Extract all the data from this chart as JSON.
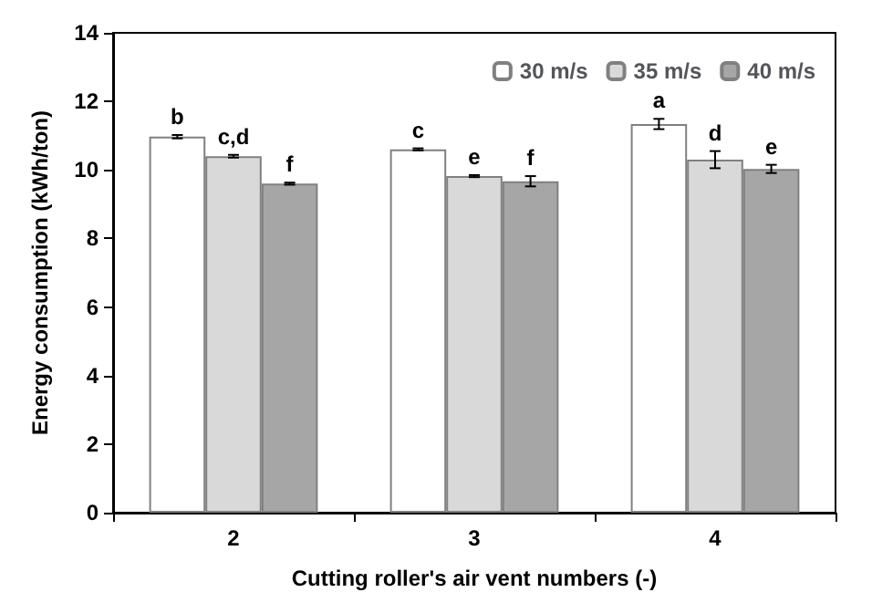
{
  "chart_data": {
    "type": "bar",
    "xlabel": "Cutting roller's air vent numbers (-)",
    "ylabel": "Energy consumption (kWh/ton)",
    "categories": [
      "2",
      "3",
      "4"
    ],
    "series": [
      {
        "name": "30 m/s",
        "color": "#ffffff",
        "values": [
          10.97,
          10.6,
          11.34
        ],
        "errors": [
          0.05,
          0.03,
          0.15
        ],
        "value_labels": [
          "b",
          "c",
          "a"
        ]
      },
      {
        "name": "35 m/s",
        "color": "#d9d9d9",
        "values": [
          10.4,
          9.82,
          10.3
        ],
        "errors": [
          0.04,
          0.03,
          0.25
        ],
        "value_labels": [
          "c,d",
          "e",
          "d"
        ]
      },
      {
        "name": "40 m/s",
        "color": "#a6a6a6",
        "values": [
          9.6,
          9.67,
          10.03
        ],
        "errors": [
          0.03,
          0.15,
          0.12
        ],
        "value_labels": [
          "f",
          "f",
          "e"
        ]
      }
    ],
    "ylim": [
      0,
      14
    ],
    "yticks": [
      0,
      2,
      4,
      6,
      8,
      10,
      12,
      14
    ],
    "grid": false,
    "legend": "top right"
  }
}
